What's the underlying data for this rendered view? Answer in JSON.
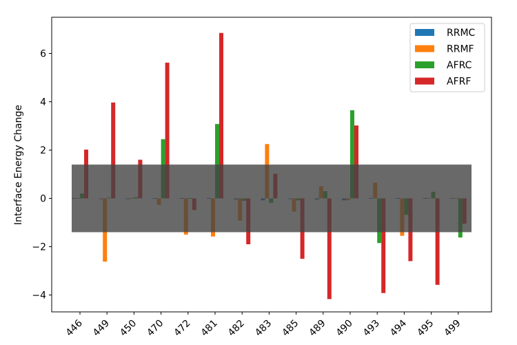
{
  "chart_data": {
    "type": "bar",
    "ylabel": "Interface Energy Change",
    "xlabel": "",
    "categories": [
      "446",
      "449",
      "450",
      "470",
      "472",
      "481",
      "482",
      "483",
      "485",
      "489",
      "490",
      "493",
      "494",
      "495",
      "499"
    ],
    "ylim": [
      -4.7,
      7.5
    ],
    "yticks": [
      -4,
      -2,
      0,
      2,
      4,
      6
    ],
    "grid": false,
    "legend_position": "top-right",
    "series": [
      {
        "name": "RRMC",
        "color": "#1f77b4",
        "values": [
          0.0,
          -0.03,
          -0.03,
          -0.02,
          -0.02,
          -0.02,
          -0.05,
          -0.08,
          -0.03,
          -0.05,
          -0.08,
          -0.02,
          -0.02,
          0.0,
          0.0
        ]
      },
      {
        "name": "RRMF",
        "color": "#ff7f0e",
        "values": [
          0.0,
          -2.62,
          0.0,
          -0.27,
          -1.5,
          -1.58,
          -0.92,
          2.25,
          -0.55,
          0.5,
          -0.08,
          0.65,
          -1.55,
          0.0,
          0.0
        ]
      },
      {
        "name": "AFRC",
        "color": "#2ca02c",
        "values": [
          0.2,
          0.03,
          0.05,
          2.45,
          -0.02,
          3.08,
          -0.1,
          -0.18,
          -0.08,
          0.3,
          3.65,
          -1.85,
          -0.68,
          0.27,
          -1.62
        ]
      },
      {
        "name": "AFRF",
        "color": "#d62728",
        "values": [
          2.02,
          3.97,
          1.6,
          5.62,
          -0.48,
          6.85,
          -1.9,
          1.02,
          -2.5,
          -4.17,
          3.02,
          -3.92,
          -2.6,
          -3.58,
          -1.05
        ]
      }
    ],
    "band": {
      "y_min": -1.4,
      "y_max": 1.4,
      "color": "#444444",
      "opacity": 0.8
    }
  }
}
